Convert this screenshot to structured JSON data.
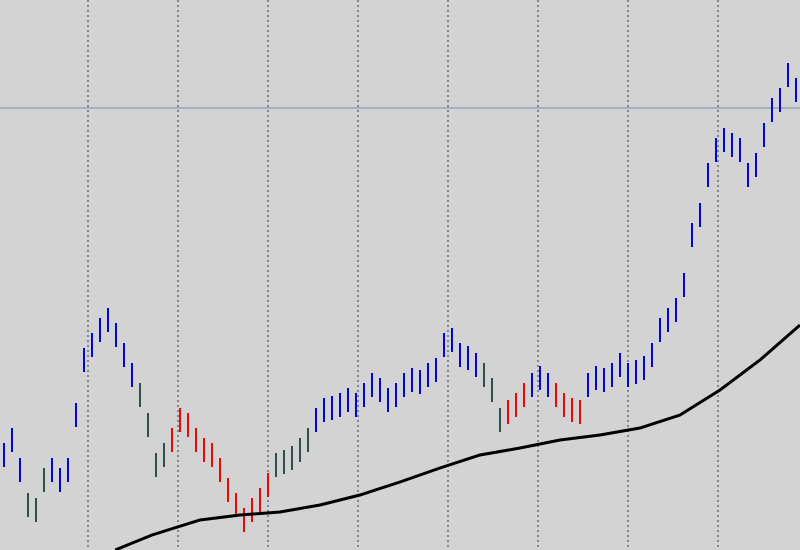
{
  "chart_data": {
    "type": "hilo",
    "xlim": [
      -0.5,
      99.5
    ],
    "ylim": [
      0,
      550
    ],
    "background": "#d3d3d3",
    "xgrid": [
      10.5,
      21.75,
      33,
      44.25,
      55.5,
      66.75,
      78,
      89.25
    ],
    "hline": {
      "value": 442,
      "color": "#7b89a8"
    },
    "high": [
      107,
      122,
      92,
      57,
      52,
      82,
      92,
      82,
      92,
      147,
      202,
      217,
      232,
      242,
      227,
      207,
      187,
      167,
      137,
      97,
      107,
      122,
      142,
      137,
      122,
      112,
      107,
      92,
      72,
      57,
      42,
      52,
      62,
      77,
      97,
      100,
      104,
      112,
      122,
      142,
      152,
      154,
      157,
      162,
      157,
      167,
      177,
      172,
      162,
      167,
      177,
      182,
      180,
      187,
      192,
      217,
      222,
      207,
      204,
      197,
      187,
      172,
      142,
      150,
      157,
      167,
      177,
      184,
      177,
      167,
      157,
      152,
      150,
      177,
      184,
      182,
      187,
      197,
      187,
      190,
      194,
      207,
      232,
      242,
      252,
      277,
      327,
      347,
      387,
      412,
      422,
      417,
      412,
      387,
      397,
      427,
      452,
      462,
      487,
      472
    ],
    "low": [
      83,
      98,
      68,
      33,
      28,
      58,
      68,
      58,
      68,
      123,
      178,
      193,
      208,
      218,
      203,
      183,
      163,
      143,
      113,
      73,
      83,
      98,
      118,
      113,
      98,
      88,
      83,
      68,
      48,
      33,
      18,
      28,
      38,
      53,
      73,
      76,
      80,
      88,
      98,
      118,
      128,
      130,
      133,
      138,
      133,
      143,
      153,
      148,
      138,
      143,
      153,
      158,
      156,
      163,
      168,
      193,
      198,
      183,
      180,
      173,
      163,
      148,
      118,
      126,
      133,
      143,
      153,
      160,
      153,
      143,
      133,
      128,
      126,
      153,
      160,
      158,
      163,
      173,
      163,
      166,
      170,
      183,
      208,
      218,
      228,
      253,
      303,
      323,
      363,
      388,
      398,
      393,
      388,
      363,
      373,
      403,
      428,
      438,
      463,
      448
    ],
    "colors": [
      "#0000ff",
      "#0000ff",
      "#0000ff",
      "#2f4f4f",
      "#2f4f4f",
      "#2f4f4f",
      "#0000ff",
      "#0000ff",
      "#0000ff",
      "#0000ff",
      "#0000ff",
      "#0000ff",
      "#0000ff",
      "#0000ff",
      "#0000ff",
      "#0000ff",
      "#0000ff",
      "#2f4f4f",
      "#2f4f4f",
      "#2f4f4f",
      "#2f4f4f",
      "#ff0000",
      "#ff0000",
      "#ff0000",
      "#ff0000",
      "#ff0000",
      "#ff0000",
      "#ff0000",
      "#ff0000",
      "#ff0000",
      "#ff0000",
      "#ff0000",
      "#ff0000",
      "#ff0000",
      "#2f4f4f",
      "#2f4f4f",
      "#2f4f4f",
      "#2f4f4f",
      "#2f4f4f",
      "#0000ff",
      "#0000ff",
      "#0000ff",
      "#0000ff",
      "#0000ff",
      "#0000ff",
      "#0000ff",
      "#0000ff",
      "#0000ff",
      "#0000ff",
      "#0000ff",
      "#0000ff",
      "#0000ff",
      "#0000ff",
      "#0000ff",
      "#0000ff",
      "#0000ff",
      "#0000ff",
      "#0000ff",
      "#0000ff",
      "#0000ff",
      "#2f4f4f",
      "#2f4f4f",
      "#2f4f4f",
      "#ff0000",
      "#ff0000",
      "#ff0000",
      "#0000ff",
      "#0000ff",
      "#0000ff",
      "#ff0000",
      "#ff0000",
      "#ff0000",
      "#ff0000",
      "#0000ff",
      "#0000ff",
      "#0000ff",
      "#0000ff",
      "#0000ff",
      "#0000ff",
      "#0000ff",
      "#0000ff",
      "#0000ff",
      "#0000ff",
      "#0000ff",
      "#0000ff",
      "#0000ff",
      "#0000ff",
      "#0000ff",
      "#0000ff",
      "#0000ff",
      "#0000ff",
      "#0000ff",
      "#0000ff",
      "#0000ff",
      "#0000ff",
      "#0000ff",
      "#0000ff",
      "#0000ff",
      "#0000ff",
      "#0000ff"
    ],
    "ma": {
      "color": "#000000",
      "x": [
        13.9,
        18.5,
        24.5,
        29.5,
        34.5,
        39.5,
        44.5,
        49.5,
        54.5,
        59.5,
        64.5,
        69.5,
        74.5,
        79.5,
        84.5,
        89.5,
        94.5,
        99.5
      ],
      "values": [
        0,
        15,
        30,
        35,
        38,
        45,
        55,
        68,
        82,
        95,
        102,
        110,
        115,
        122,
        135,
        160,
        190,
        225
      ]
    }
  }
}
